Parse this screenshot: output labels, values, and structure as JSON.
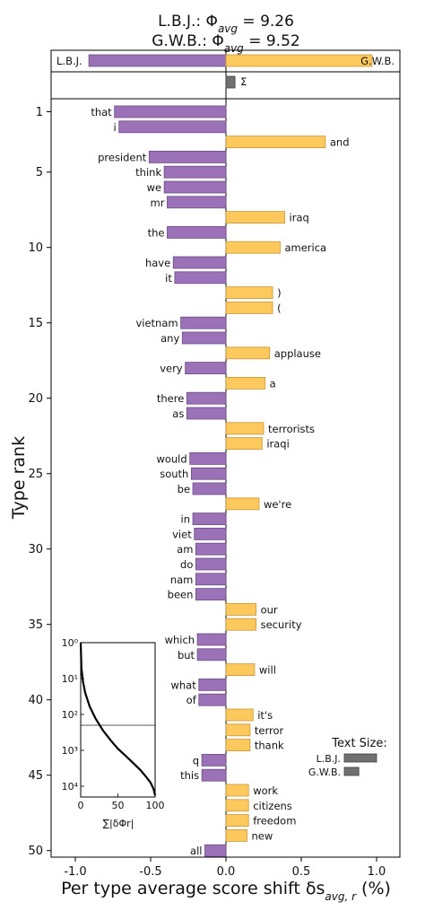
{
  "chart_data": {
    "type": "bar",
    "orientation": "horizontal",
    "title": {
      "line1": "L.B.J.: Φavg = 9.26",
      "line1_prefix": "L.B.J.: Φ",
      "line1_sub": "avg",
      "line1_value": " = 9.26",
      "line2": "G.W.B.: Φavg = 9.52",
      "line2_prefix": "G.W.B.: Φ",
      "line2_sub": "avg",
      "line2_value": " = 9.52"
    },
    "xlabel": "Per type average score shift δs_avg,r (%)",
    "xlabel_parts": {
      "main": "Per type average score shift δs",
      "sub": "avg, r",
      "tail": " (%)"
    },
    "ylabel": "Type rank",
    "xlim": [
      -1.2,
      1.17
    ],
    "xticks": [
      {
        "value": -1.0,
        "label": "-1.0"
      },
      {
        "value": -0.5,
        "label": "-0.5"
      },
      {
        "value": 0.0,
        "label": "0.0"
      },
      {
        "value": 0.5,
        "label": "0.5"
      },
      {
        "value": 1.0,
        "label": "1.0"
      }
    ],
    "yticks": [
      1,
      5,
      10,
      15,
      20,
      25,
      30,
      35,
      40,
      45,
      50
    ],
    "colors": {
      "left": "#9b72b8",
      "right": "#fdc95c",
      "sum": "#707070"
    },
    "summary": {
      "left_label": "L.B.J.",
      "right_label": "G.W.B.",
      "left_value": -0.91,
      "right_value": 0.97,
      "sum_label": "Σ",
      "sum_value": 0.06
    },
    "words": [
      "that",
      "i",
      "and",
      "president",
      "think",
      "we",
      "mr",
      "iraq",
      "the",
      "america",
      "have",
      "it",
      ")",
      "(",
      "vietnam",
      "any",
      "applause",
      "very",
      "a",
      "there",
      "as",
      "terrorists",
      "iraqi",
      "would",
      "south",
      "be",
      "we're",
      "in",
      "viet",
      "am",
      "do",
      "nam",
      "been",
      "our",
      "security",
      "which",
      "but",
      "will",
      "what",
      "of",
      "it's",
      "terror",
      "thank",
      "q",
      "this",
      "work",
      "citizens",
      "freedom",
      "new",
      "all"
    ],
    "values": [
      -0.74,
      -0.71,
      0.66,
      -0.51,
      -0.41,
      -0.41,
      -0.39,
      0.39,
      -0.39,
      0.36,
      -0.35,
      -0.34,
      0.31,
      0.31,
      -0.3,
      -0.29,
      0.29,
      -0.27,
      0.26,
      -0.26,
      -0.26,
      0.25,
      0.24,
      -0.24,
      -0.23,
      -0.22,
      0.22,
      -0.22,
      -0.21,
      -0.2,
      -0.2,
      -0.2,
      -0.2,
      0.2,
      0.2,
      -0.19,
      -0.19,
      0.19,
      -0.18,
      -0.18,
      0.18,
      0.16,
      0.16,
      -0.16,
      -0.16,
      0.15,
      0.15,
      0.15,
      0.14,
      -0.14
    ],
    "inset": {
      "type": "line",
      "xlabel": "∑|δΦr|",
      "xticks": [
        "0",
        "50",
        "100"
      ],
      "yticks": [
        "10⁰",
        "10¹",
        "10²",
        "10³",
        "10⁴"
      ],
      "y_log_range": [
        0,
        4.3
      ],
      "x": [
        0,
        1,
        3,
        6,
        12,
        20,
        30,
        40,
        50,
        60,
        70,
        80,
        88,
        94,
        98,
        100
      ],
      "rank": [
        1,
        5,
        12,
        25,
        60,
        130,
        280,
        520,
        900,
        1400,
        2200,
        3500,
        5500,
        8000,
        12000,
        18000
      ],
      "reference_line_rank": 200
    },
    "text_size_legend": {
      "title": "Text Size:",
      "left_label": "L.B.J.",
      "right_label": "G.W.B.",
      "left_size": 1.0,
      "right_size": 0.45
    }
  }
}
